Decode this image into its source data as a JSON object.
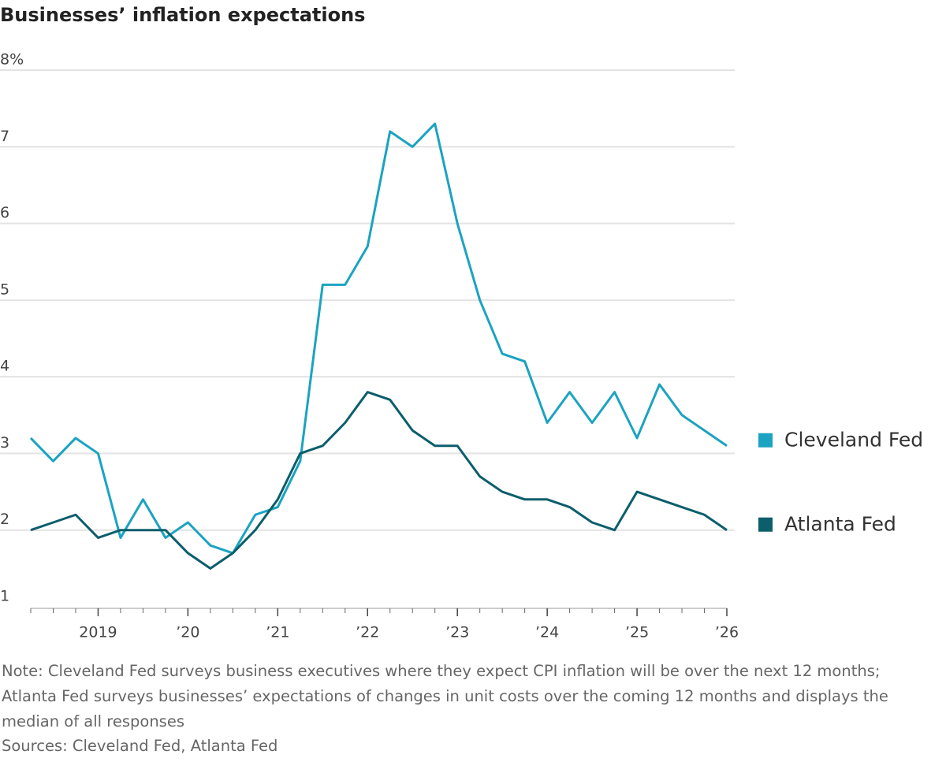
{
  "chart_data": {
    "type": "line",
    "title": "Businesses’ inflation expectations",
    "note": "Note: Cleveland Fed surveys business executives where they expect CPI inflation will be over the next 12 months; Atlanta Fed surveys businesses’ expectations of changes in unit costs over the coming 12 months and displays the median of all responses",
    "source": "Sources: Cleveland Fed, Atlanta Fed",
    "x": [
      2018.25,
      2018.5,
      2018.75,
      2019,
      2019.25,
      2019.5,
      2019.75,
      2020,
      2020.25,
      2020.5,
      2020.75,
      2021,
      2021.25,
      2021.5,
      2021.75,
      2022,
      2022.25,
      2022.5,
      2022.75,
      2023,
      2023.25,
      2023.5,
      2023.75,
      2024,
      2024.25,
      2024.5,
      2024.75,
      2025,
      2025.25,
      2025.5,
      2025.75,
      2026
    ],
    "series": [
      {
        "name": "Cleveland Fed",
        "color": "#1ba3c1",
        "values": [
          3.2,
          2.9,
          3.2,
          3.0,
          1.9,
          2.4,
          1.9,
          2.1,
          1.8,
          1.7,
          2.2,
          2.3,
          2.9,
          5.2,
          5.2,
          5.7,
          7.2,
          7.0,
          7.3,
          6.0,
          5.0,
          4.3,
          4.2,
          3.4,
          3.8,
          3.4,
          3.8,
          3.2,
          3.9,
          3.5,
          3.3,
          3.1
        ]
      },
      {
        "name": "Atlanta Fed",
        "color": "#0c5e6c",
        "values": [
          2.0,
          2.1,
          2.2,
          1.9,
          2.0,
          2.0,
          2.0,
          1.7,
          1.5,
          1.7,
          2.0,
          2.4,
          3.0,
          3.1,
          3.4,
          3.8,
          3.7,
          3.3,
          3.1,
          3.1,
          2.7,
          2.5,
          2.4,
          2.4,
          2.3,
          2.1,
          2.0,
          2.5,
          2.4,
          2.3,
          2.2,
          2.0
        ]
      }
    ],
    "xlim": [
      2018.25,
      2026
    ],
    "xticks": [
      2019,
      {
        "value": 2020,
        "label": "’20"
      },
      {
        "value": 2021,
        "label": "’21"
      },
      {
        "value": 2022,
        "label": "’22"
      },
      {
        "value": 2023,
        "label": "’23"
      },
      {
        "value": 2024,
        "label": "’24"
      },
      {
        "value": 2025,
        "label": "’25"
      },
      {
        "value": 2026,
        "label": "’26"
      }
    ],
    "ylim": [
      1,
      8
    ],
    "yticks": [
      1,
      2,
      3,
      4,
      5,
      6,
      7,
      {
        "value": 8,
        "label": "8%"
      }
    ],
    "grid": true
  }
}
